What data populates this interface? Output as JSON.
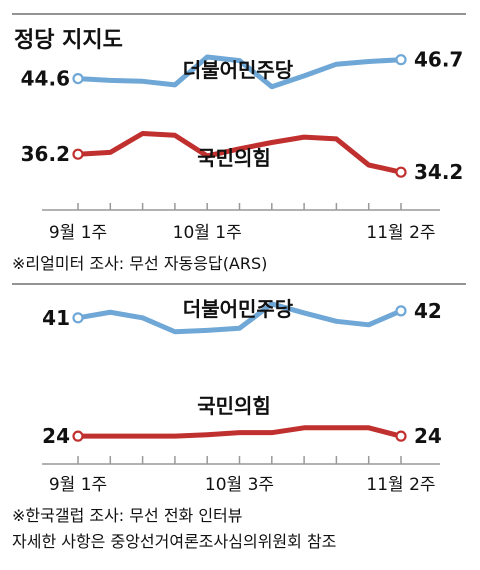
{
  "title": "정당 지지도",
  "colors": {
    "blue": "#6fa7d6",
    "red": "#c0302f",
    "axis": "#999999",
    "rule": "#555555"
  },
  "chart_data": [
    {
      "type": "line",
      "source_note": "※리얼미터 조사: 무선 자동응답(ARS)",
      "x": [
        1,
        2,
        3,
        4,
        5,
        6,
        7,
        8,
        9,
        10,
        11
      ],
      "x_tick_labels": [
        {
          "x": 1,
          "label": "9월 1주"
        },
        {
          "x": 5,
          "label": "10월 1주"
        },
        {
          "x": 11,
          "label": "11월 2주"
        }
      ],
      "grid": false,
      "ylim": [
        30,
        50
      ],
      "series": [
        {
          "name": "더불어민주당",
          "color": "#6fa7d6",
          "values": [
            44.6,
            44.4,
            44.3,
            43.9,
            47.0,
            46.6,
            43.7,
            44.9,
            46.2,
            46.5,
            46.7
          ],
          "start_label": "44.6",
          "end_label": "46.7"
        },
        {
          "name": "국민의힘",
          "color": "#c0302f",
          "values": [
            36.2,
            36.4,
            38.5,
            38.3,
            36.0,
            36.8,
            37.5,
            38.1,
            37.9,
            35.0,
            34.2
          ],
          "start_label": "36.2",
          "end_label": "34.2"
        }
      ]
    },
    {
      "type": "line",
      "source_note": "※한국갤럽 조사: 무선 전화 인터뷰",
      "x": [
        1,
        2,
        3,
        4,
        5,
        6,
        7,
        8,
        9,
        10,
        11
      ],
      "x_tick_labels": [
        {
          "x": 1,
          "label": "9월 1주"
        },
        {
          "x": 6,
          "label": "10월 3주"
        },
        {
          "x": 11,
          "label": "11월 2주"
        }
      ],
      "grid": false,
      "ylim": [
        20,
        45
      ],
      "series": [
        {
          "name": "더불어민주당",
          "color": "#6fa7d6",
          "values": [
            41,
            41.8,
            41,
            39,
            39.2,
            39.5,
            43,
            41.7,
            40.5,
            40,
            42
          ],
          "start_label": "41",
          "end_label": "42"
        },
        {
          "name": "국민의힘",
          "color": "#c0302f",
          "values": [
            24,
            24,
            24,
            24,
            24.2,
            24.5,
            24.5,
            25.2,
            25.2,
            25.2,
            24
          ],
          "start_label": "24",
          "end_label": "24"
        }
      ]
    }
  ],
  "footnote": "자세한 사항은 중앙선거여론조사심의위원회 참조"
}
